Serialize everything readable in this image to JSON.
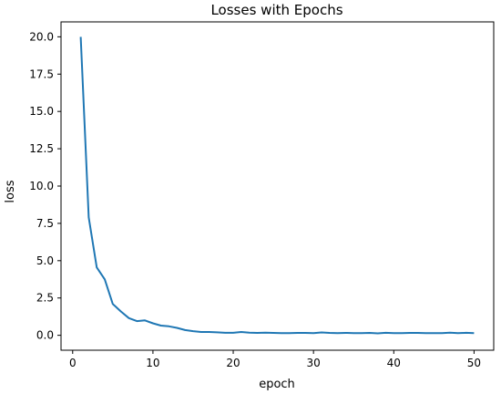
{
  "chart_data": {
    "type": "line",
    "title": "Losses with Epochs",
    "xlabel": "epoch",
    "ylabel": "loss",
    "xlim": [
      -1.45,
      52.45
    ],
    "ylim": [
      -1.0,
      21.0
    ],
    "x_ticks": [
      0,
      10,
      20,
      30,
      40,
      50
    ],
    "y_ticks": [
      0.0,
      2.5,
      5.0,
      7.5,
      10.0,
      12.5,
      15.0,
      17.5,
      20.0
    ],
    "x_tick_labels": [
      "0",
      "10",
      "20",
      "30",
      "40",
      "50"
    ],
    "y_tick_labels": [
      "0.0",
      "2.5",
      "5.0",
      "7.5",
      "10.0",
      "12.5",
      "15.0",
      "17.5",
      "20.0"
    ],
    "grid": false,
    "line_color": "#1f77b4",
    "series": [
      {
        "x": [
          1,
          2,
          3,
          4,
          5,
          6,
          7,
          8,
          9,
          10,
          11,
          12,
          13,
          14,
          15,
          16,
          17,
          18,
          19,
          20,
          21,
          22,
          23,
          24,
          25,
          26,
          27,
          28,
          29,
          30,
          31,
          32,
          33,
          34,
          35,
          36,
          37,
          38,
          39,
          40,
          41,
          42,
          43,
          44,
          45,
          46,
          47,
          48,
          49,
          50
        ],
        "values": [
          20.0,
          7.9,
          4.55,
          3.75,
          2.1,
          1.6,
          1.15,
          0.95,
          1.0,
          0.8,
          0.65,
          0.6,
          0.5,
          0.35,
          0.28,
          0.22,
          0.22,
          0.2,
          0.17,
          0.17,
          0.22,
          0.18,
          0.16,
          0.18,
          0.16,
          0.14,
          0.15,
          0.16,
          0.16,
          0.14,
          0.19,
          0.16,
          0.15,
          0.16,
          0.15,
          0.14,
          0.16,
          0.13,
          0.17,
          0.15,
          0.15,
          0.16,
          0.16,
          0.15,
          0.14,
          0.15,
          0.18,
          0.14,
          0.17,
          0.15
        ]
      }
    ]
  }
}
